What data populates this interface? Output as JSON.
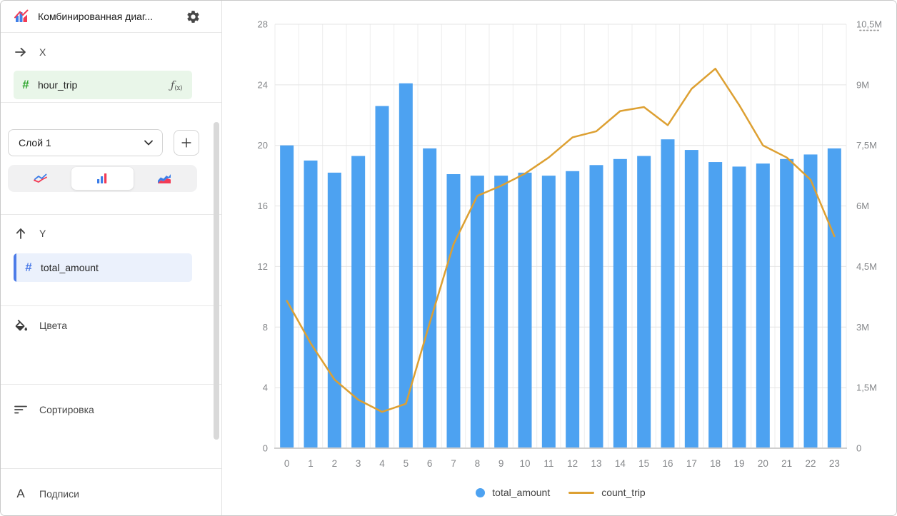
{
  "header": {
    "title": "Комбинированная диаг..."
  },
  "sidebar": {
    "x_section": {
      "label": "X",
      "field_name": "hour_trip",
      "fx": "ƒ",
      "fx_sub": "(x)"
    },
    "layer_select": {
      "value": "Слой 1"
    },
    "chart_type_options": [
      "lines",
      "bars",
      "area"
    ],
    "chart_type_selected": "bars",
    "y_section": {
      "label": "Y",
      "field_name": "total_amount"
    },
    "colors_label": "Цвета",
    "sorting_label": "Сортировка",
    "labels_label": "Подписи"
  },
  "chart_data": {
    "type": "combo: bar + line",
    "categories": [
      "0",
      "1",
      "2",
      "3",
      "4",
      "5",
      "6",
      "7",
      "8",
      "9",
      "10",
      "11",
      "12",
      "13",
      "14",
      "15",
      "16",
      "17",
      "18",
      "19",
      "20",
      "21",
      "22",
      "23"
    ],
    "series": [
      {
        "name": "total_amount",
        "type": "bar",
        "axis": "left",
        "color": "#4DA2F1",
        "values": [
          20.0,
          19.0,
          18.2,
          19.3,
          22.6,
          24.1,
          19.8,
          18.1,
          18.0,
          18.0,
          18.2,
          18.0,
          18.3,
          18.7,
          19.1,
          19.3,
          20.4,
          19.7,
          18.9,
          18.6,
          18.8,
          19.1,
          19.4,
          19.8
        ]
      },
      {
        "name": "count_trip",
        "type": "line",
        "axis": "right",
        "color": "#DDA032",
        "values_millions": [
          3.65,
          2.6,
          1.7,
          1.2,
          0.9,
          1.1,
          3.1,
          5.05,
          6.25,
          6.5,
          6.8,
          7.2,
          7.7,
          7.85,
          8.35,
          8.45,
          8.0,
          8.9,
          9.4,
          8.5,
          7.5,
          7.2,
          6.65,
          5.25
        ]
      }
    ],
    "left_axis": {
      "ticks": [
        0,
        4,
        8,
        12,
        16,
        20,
        24,
        28
      ],
      "max": 28
    },
    "right_axis": {
      "tick_labels": [
        "0",
        "1,5M",
        "3M",
        "4,5M",
        "6M",
        "7,5M",
        "9M",
        "10,5M"
      ],
      "max_millions": 10.5,
      "top_tick_dotted": true
    },
    "grid": "horizontal and vertical, light gray",
    "legend_position": "bottom-center"
  }
}
